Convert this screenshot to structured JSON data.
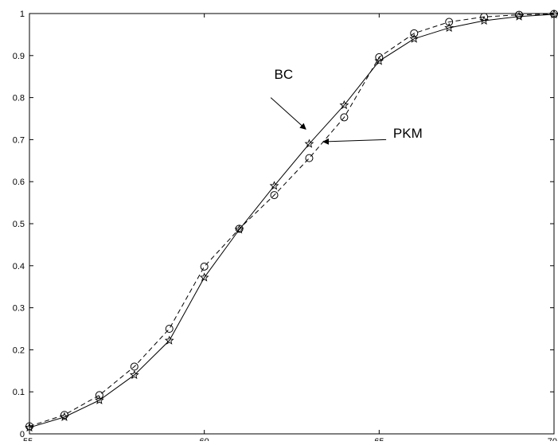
{
  "chart_data": {
    "type": "line",
    "title": "",
    "xlabel": "",
    "ylabel": "",
    "xlim": [
      55,
      70
    ],
    "ylim": [
      0,
      1
    ],
    "grid": false,
    "x_ticks": [
      55,
      60,
      65,
      70
    ],
    "y_ticks": [
      0,
      0.1,
      0.2,
      0.3,
      0.4,
      0.5,
      0.6,
      0.7,
      0.8,
      0.9,
      1
    ],
    "x_tick_labels": [
      "55",
      "60",
      "65",
      "70"
    ],
    "y_tick_labels": [
      "0",
      "0.1",
      "0.2",
      "0.3",
      "0.4",
      "0.5",
      "0.6",
      "0.7",
      "0.8",
      "0.9",
      "1"
    ],
    "x": [
      55,
      56,
      57,
      58,
      59,
      60,
      61,
      62,
      63,
      64,
      65,
      66,
      67,
      68,
      69,
      70
    ],
    "series": [
      {
        "name": "BC",
        "line_style": "solid",
        "marker": "star",
        "color": "#000000",
        "values": [
          0.015,
          0.04,
          0.08,
          0.14,
          0.222,
          0.372,
          0.486,
          0.59,
          0.69,
          0.782,
          0.887,
          0.94,
          0.966,
          0.983,
          0.993,
          0.998
        ]
      },
      {
        "name": "PKM",
        "line_style": "dashed",
        "marker": "circle",
        "color": "#000000",
        "values": [
          0.018,
          0.045,
          0.092,
          0.16,
          0.25,
          0.398,
          0.488,
          0.568,
          0.656,
          0.753,
          0.896,
          0.953,
          0.98,
          0.992,
          0.997,
          0.999
        ]
      }
    ],
    "annotations": [
      {
        "text": "BC",
        "series": "BC",
        "points_to": {
          "x": 62.9,
          "y": 0.725
        },
        "text_at": {
          "x": 62.0,
          "y": 0.845
        },
        "tail_at": {
          "x": 61.9,
          "y": 0.8
        }
      },
      {
        "text": "PKM",
        "series": "PKM",
        "points_to": {
          "x": 63.4,
          "y": 0.695
        },
        "text_at": {
          "x": 65.4,
          "y": 0.705
        },
        "tail_at": {
          "x": 65.2,
          "y": 0.7
        }
      }
    ]
  }
}
